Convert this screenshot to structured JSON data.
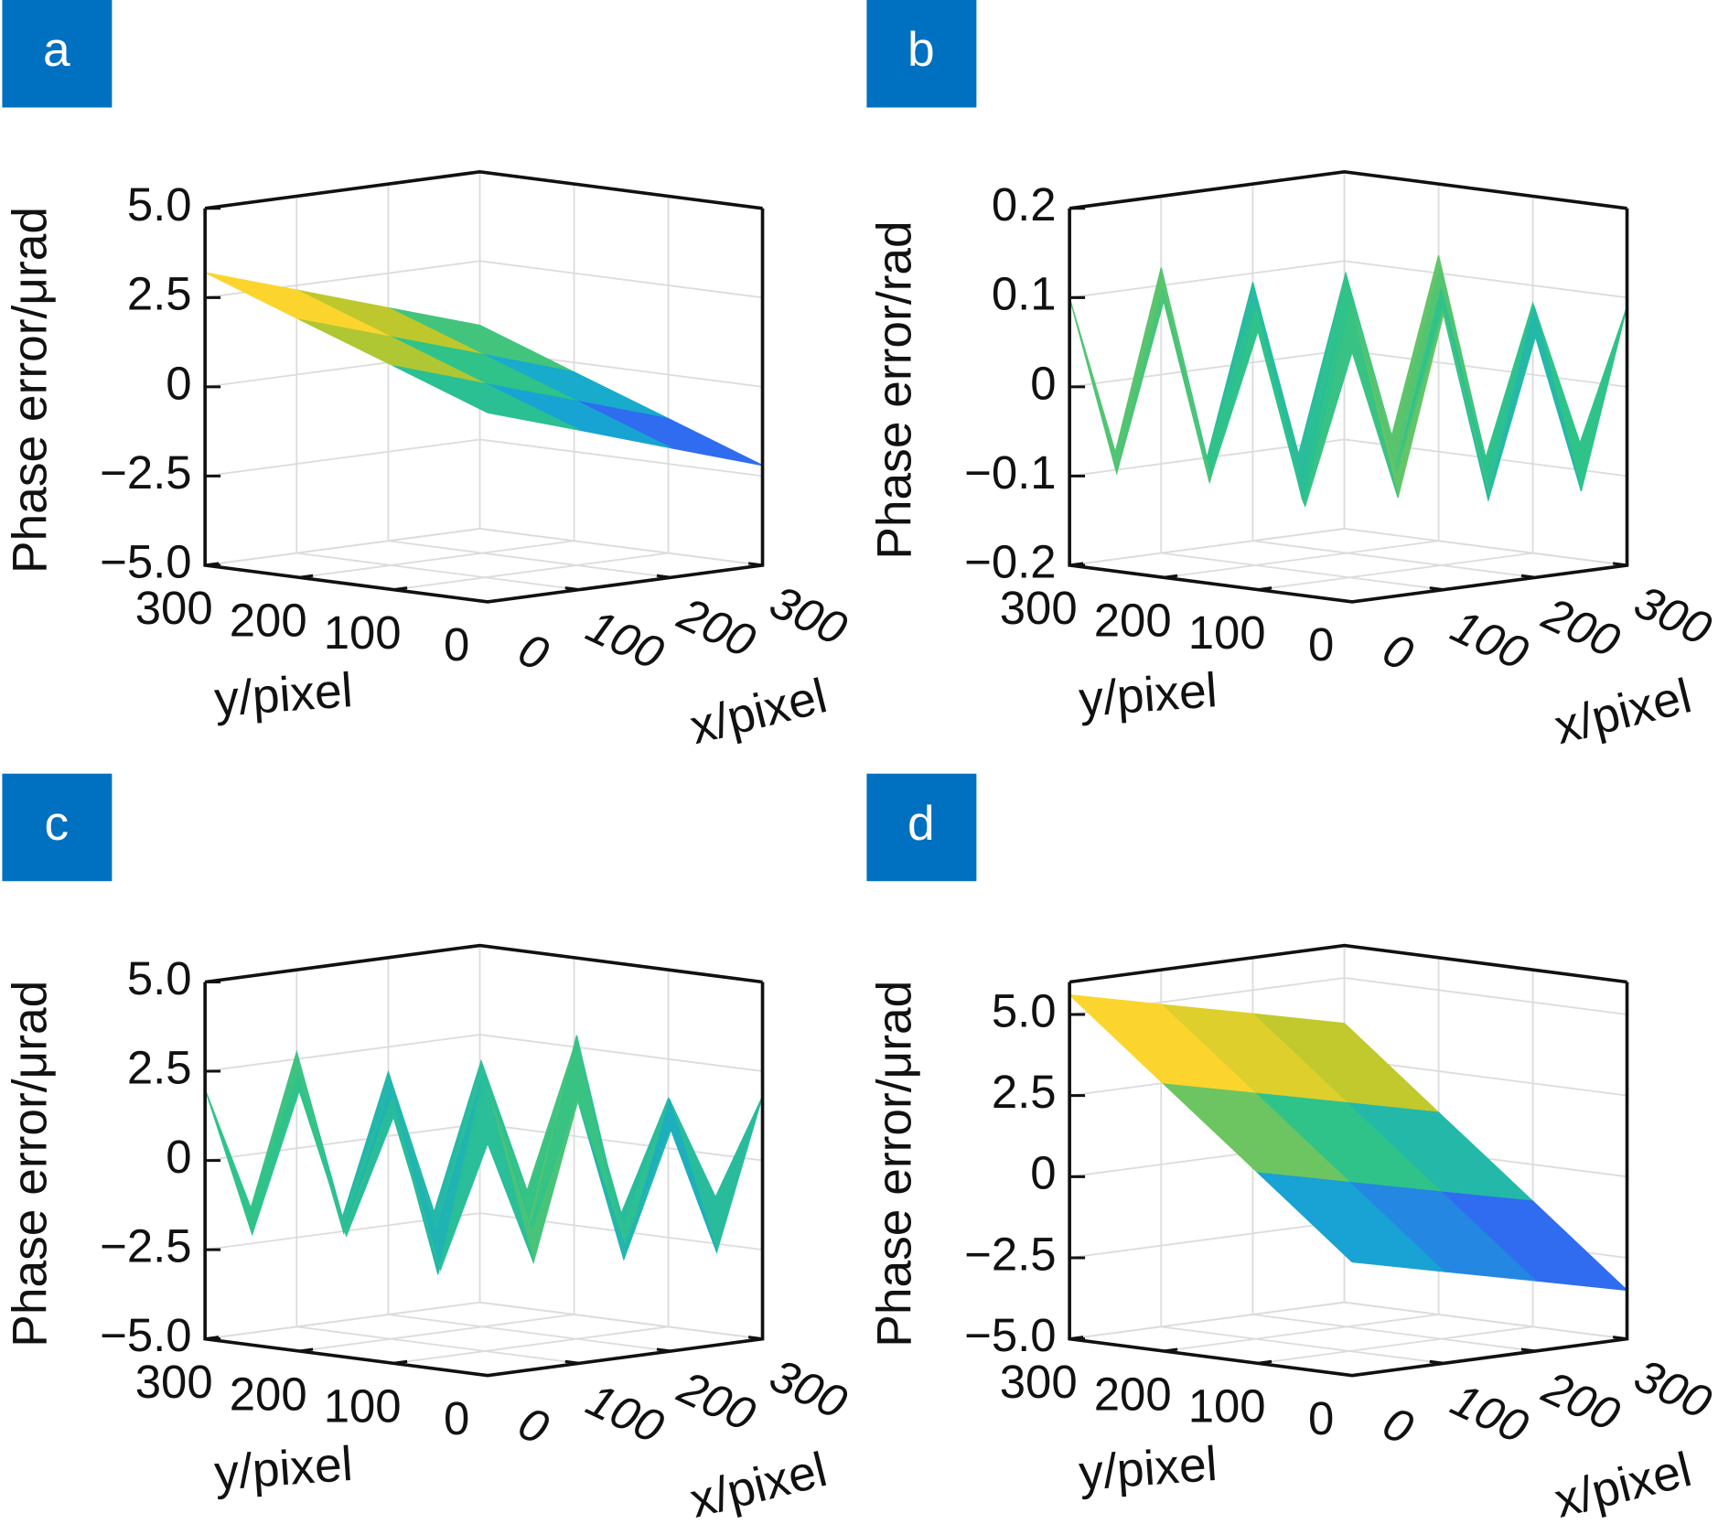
{
  "chart_data": [
    {
      "type": "surface3d",
      "panel_label": "a",
      "zlabel": "Phase error/μrad",
      "xlabel": "x/pixel",
      "ylabel": "y/pixel",
      "xlim": [
        0,
        300
      ],
      "ylim": [
        0,
        300
      ],
      "zlim": [
        -5,
        5
      ],
      "xticks": [
        0,
        100,
        200,
        300
      ],
      "yticks": [
        0,
        100,
        200,
        300
      ],
      "zticks": [
        {
          "value": 5,
          "label": "5.0"
        },
        2.5,
        0,
        {
          "value": -2.5,
          "label": "−2.5"
        },
        {
          "value": -5,
          "label": "−5.0"
        }
      ],
      "grid": true,
      "colormap": [
        "#3e26a8",
        "#2f6cf0",
        "#16a9d0",
        "#2fc38a",
        "#b9c72c",
        "#fbd52e",
        "#f9fb15"
      ],
      "x": [
        0,
        100,
        200,
        300
      ],
      "y": [
        0,
        100,
        200,
        300
      ],
      "z": [
        [
          0.3,
          -0.53,
          -1.37,
          -2.2
        ],
        [
          1.27,
          0.43,
          -0.4,
          -1.23
        ],
        [
          2.23,
          1.4,
          0.57,
          -0.27
        ],
        [
          3.2,
          2.37,
          1.53,
          0.7
        ]
      ]
    },
    {
      "type": "surface3d",
      "panel_label": "b",
      "zlabel": "Phase error/rad",
      "xlabel": "x/pixel",
      "ylabel": "y/pixel",
      "xlim": [
        0,
        300
      ],
      "ylim": [
        0,
        300
      ],
      "zlim": [
        -0.2,
        0.2
      ],
      "xticks": [
        0,
        100,
        200,
        300
      ],
      "yticks": [
        0,
        100,
        200,
        300
      ],
      "zticks": [
        0.2,
        0.1,
        0,
        {
          "value": -0.1,
          "label": "−0.1"
        },
        {
          "value": -0.2,
          "label": "−0.2"
        }
      ],
      "grid": true,
      "colormap": [
        "#3e26a8",
        "#2f6cf0",
        "#16a9d0",
        "#2fc38a",
        "#b9c72c",
        "#fbd52e",
        "#f9fb15"
      ],
      "x": [
        0,
        50,
        100,
        150,
        200,
        250,
        300
      ],
      "y": [
        0,
        50,
        100,
        150,
        200,
        250,
        300
      ],
      "z": [
        [
          0.08,
          -0.09,
          0.11,
          -0.1,
          0.07,
          -0.11,
          0.09
        ],
        [
          -0.1,
          0.12,
          -0.08,
          0.1,
          -0.12,
          0.09,
          -0.07
        ],
        [
          0.09,
          -0.11,
          0.1,
          -0.09,
          0.11,
          -0.1,
          0.08
        ],
        [
          -0.08,
          0.1,
          -0.12,
          0.11,
          -0.09,
          0.12,
          -0.1
        ],
        [
          0.11,
          -0.1,
          0.09,
          -0.11,
          0.1,
          -0.08,
          0.12
        ],
        [
          -0.09,
          0.11,
          -0.1,
          0.08,
          -0.12,
          0.1,
          -0.09
        ],
        [
          0.1,
          -0.08,
          0.12,
          -0.1,
          0.09,
          -0.11,
          0.07
        ]
      ]
    },
    {
      "type": "surface3d",
      "panel_label": "c",
      "zlabel": "Phase error/μrad",
      "xlabel": "x/pixel",
      "ylabel": "y/pixel",
      "xlim": [
        0,
        300
      ],
      "ylim": [
        0,
        300
      ],
      "zlim": [
        -5,
        5
      ],
      "xticks": [
        0,
        100,
        200,
        300
      ],
      "yticks": [
        0,
        100,
        200,
        300
      ],
      "zticks": [
        {
          "value": 5,
          "label": "5.0"
        },
        2.5,
        0,
        {
          "value": -2.5,
          "label": "−2.5"
        },
        {
          "value": -5,
          "label": "−5.0"
        }
      ],
      "grid": true,
      "colormap": [
        "#3e26a8",
        "#2f6cf0",
        "#16a9d0",
        "#2fc38a",
        "#b9c72c",
        "#fbd52e",
        "#f9fb15"
      ],
      "x": [
        0,
        50,
        100,
        150,
        200,
        250,
        300
      ],
      "y": [
        0,
        50,
        100,
        150,
        200,
        250,
        300
      ],
      "z": [
        [
          1.5,
          -2.0,
          2.5,
          -1.8,
          1.2,
          -2.4,
          1.8
        ],
        [
          -2.2,
          2.8,
          -1.5,
          2.0,
          -2.6,
          1.7,
          -1.2
        ],
        [
          1.9,
          -2.5,
          2.2,
          -1.6,
          3.5,
          -2.1,
          1.4
        ],
        [
          -1.6,
          2.1,
          -3.0,
          2.4,
          -1.9,
          2.6,
          -2.0
        ],
        [
          2.3,
          -1.8,
          1.7,
          -2.7,
          2.0,
          -1.5,
          2.5
        ],
        [
          -1.9,
          2.4,
          -2.2,
          1.6,
          -2.5,
          2.1,
          -1.7
        ],
        [
          2.0,
          -1.5,
          2.7,
          -2.1,
          1.8,
          -2.3,
          1.3
        ]
      ]
    },
    {
      "type": "surface3d",
      "panel_label": "d",
      "zlabel": "Phase error/μrad",
      "xlabel": "x/pixel",
      "ylabel": "y/pixel",
      "xlim": [
        0,
        300
      ],
      "ylim": [
        0,
        300
      ],
      "zlim": [
        -5,
        6
      ],
      "xticks": [
        0,
        100,
        200,
        300
      ],
      "yticks": [
        0,
        100,
        200,
        300
      ],
      "zticks": [
        {
          "value": 5,
          "label": "5.0"
        },
        2.5,
        0,
        {
          "value": -2.5,
          "label": "−2.5"
        },
        {
          "value": -5,
          "label": "−5.0"
        }
      ],
      "grid": true,
      "colormap": [
        "#3e26a8",
        "#2f6cf0",
        "#16a9d0",
        "#2fc38a",
        "#b9c72c",
        "#fbd52e",
        "#f9fb15"
      ],
      "x": [
        0,
        100,
        200,
        300
      ],
      "y": [
        0,
        100,
        200,
        300
      ],
      "z": [
        [
          -1.5,
          -2.17,
          -2.83,
          -3.5
        ],
        [
          0.87,
          0.2,
          -0.47,
          -1.13
        ],
        [
          3.23,
          2.57,
          1.9,
          1.23
        ],
        [
          5.6,
          4.93,
          4.27,
          3.6
        ]
      ]
    }
  ]
}
